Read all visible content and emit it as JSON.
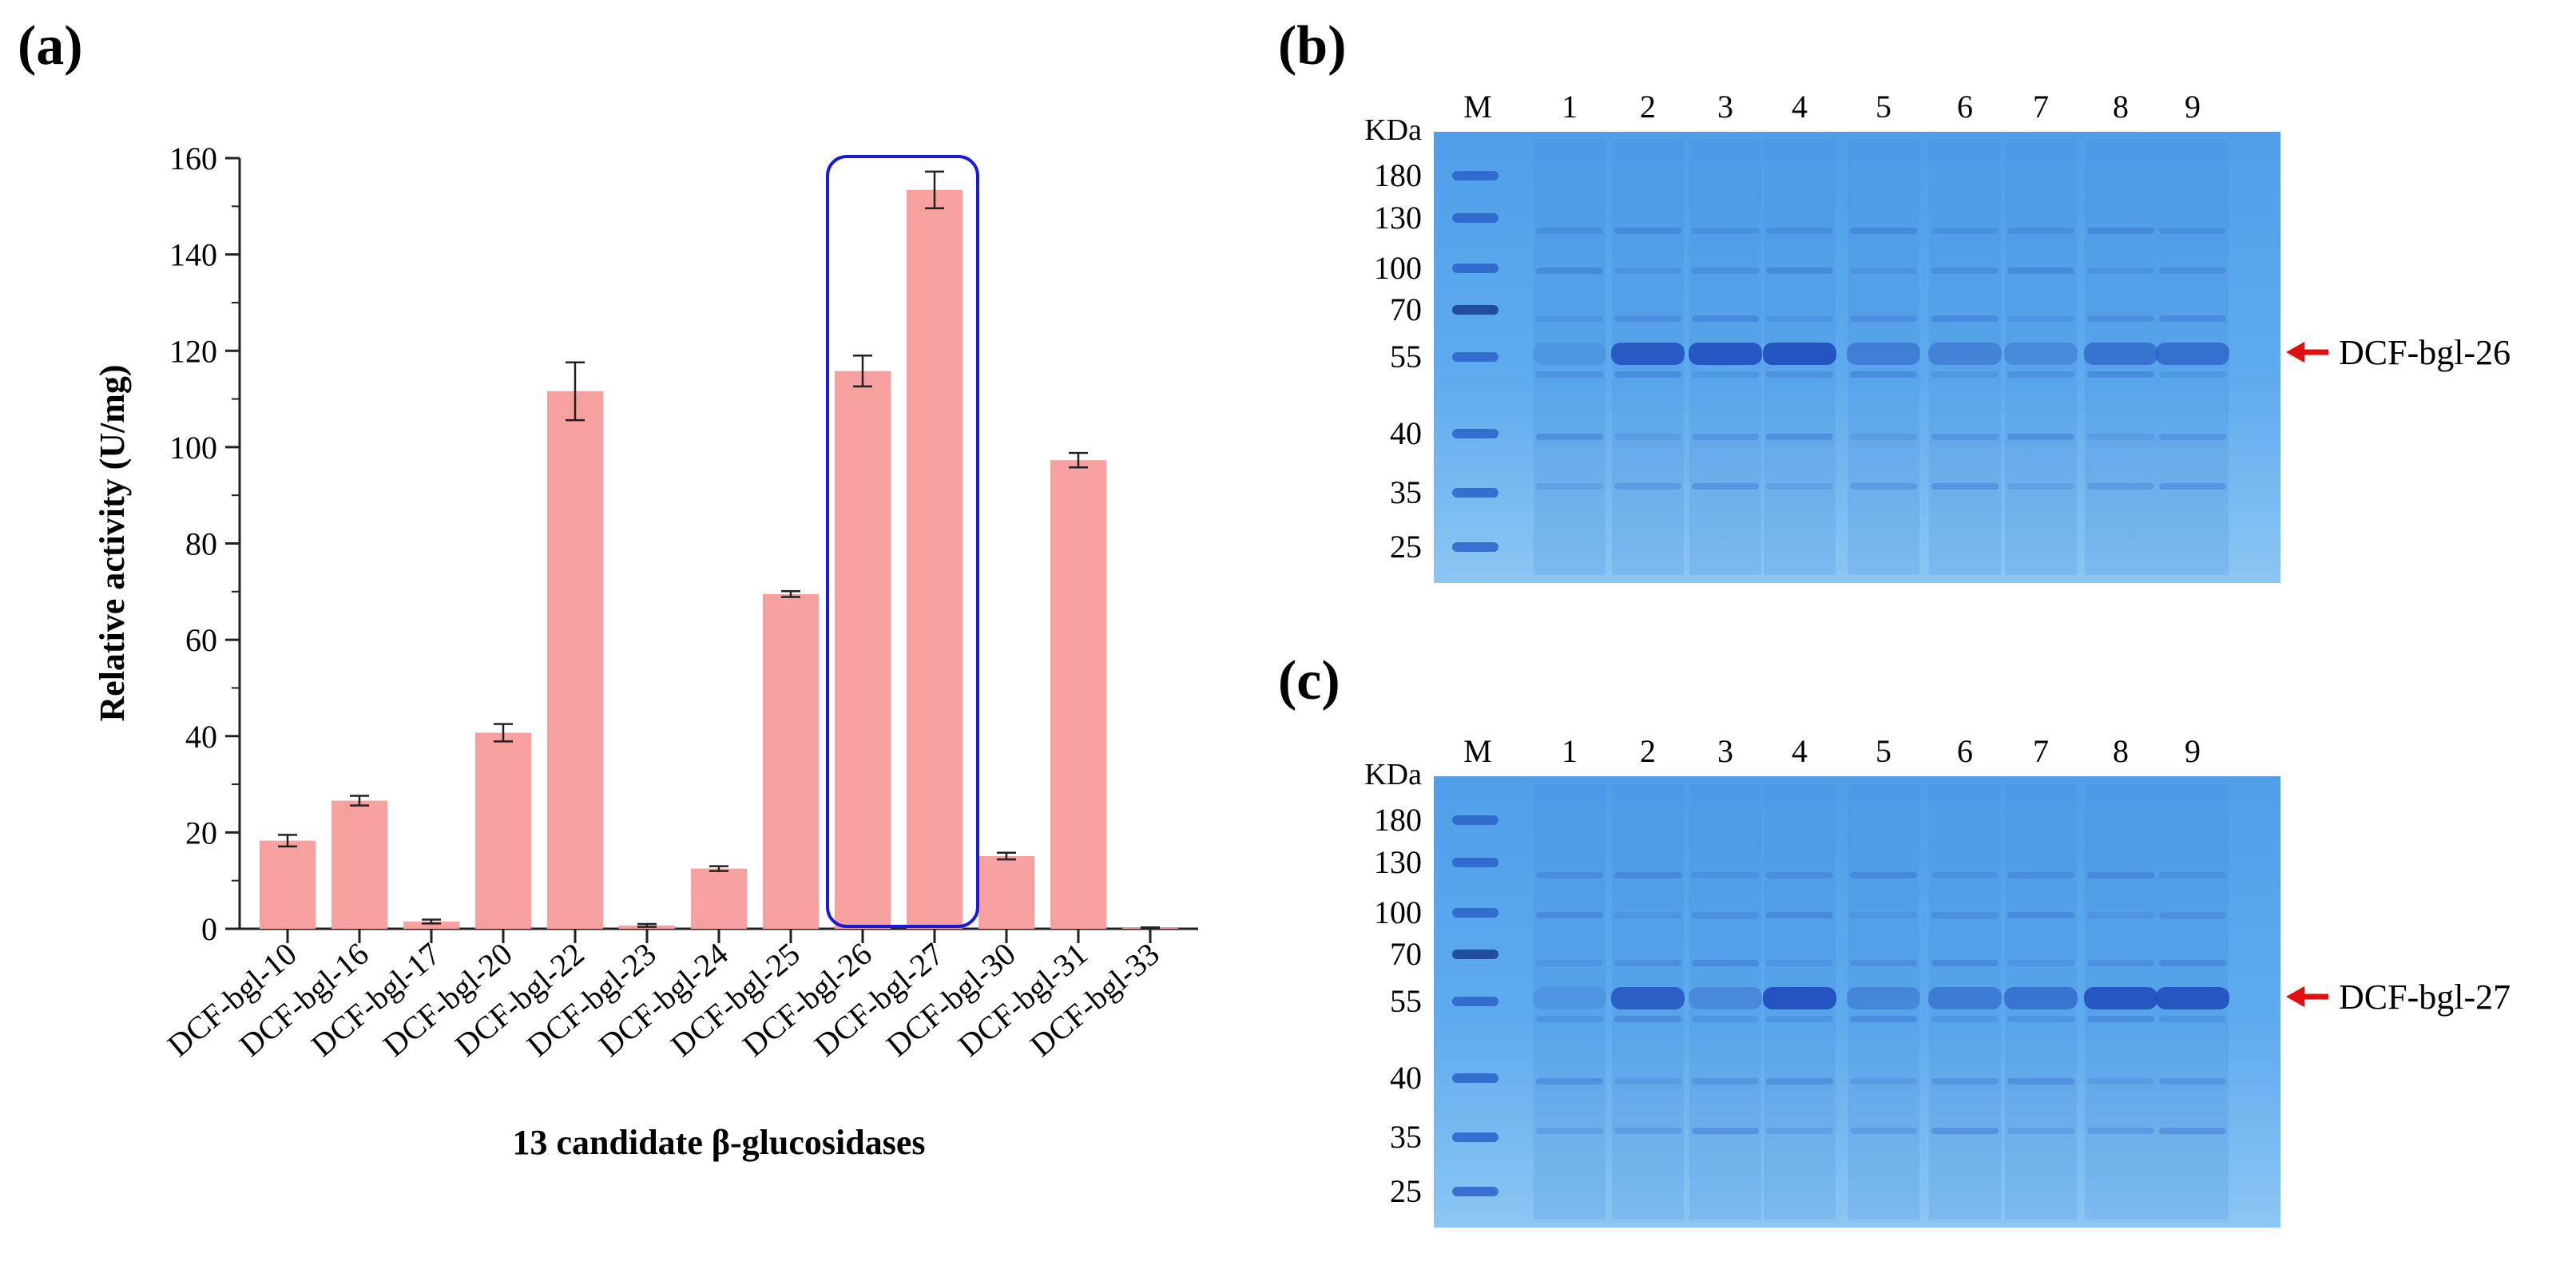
{
  "panel_labels": {
    "a": "(a)",
    "b": "(b)",
    "c": "(c)"
  },
  "chart_data": {
    "type": "bar",
    "title": "",
    "xlabel": "13 candidate β-glucosidases",
    "ylabel": "Relative activity (U/mg)",
    "ylim": [
      0,
      160
    ],
    "yticks": [
      0,
      20,
      40,
      60,
      80,
      100,
      120,
      140,
      160
    ],
    "categories": [
      "DCF-bgl-10",
      "DCF-bgl-16",
      "DCF-bgl-17",
      "DCF-bgl-20",
      "DCF-bgl-22",
      "DCF-bgl-23",
      "DCF-bgl-24",
      "DCF-bgl-25",
      "DCF-bgl-26",
      "DCF-bgl-27",
      "DCF-bgl-30",
      "DCF-bgl-31",
      "DCF-bgl-33"
    ],
    "values": [
      18.3,
      26.6,
      1.5,
      40.7,
      111.6,
      0.7,
      12.5,
      69.5,
      115.8,
      153.4,
      15.1,
      97.3,
      0.2
    ],
    "errors": [
      1.2,
      1.0,
      0.4,
      1.8,
      6.0,
      0.3,
      0.5,
      0.6,
      3.2,
      3.8,
      0.7,
      1.5,
      0.1
    ],
    "highlight": [
      "DCF-bgl-26",
      "DCF-bgl-27"
    ],
    "bar_color": "#f6a0a0",
    "highlight_color": "#1a1ad6"
  },
  "gels": [
    {
      "id": "b",
      "unit_label": "KDa",
      "lane_labels": [
        "M",
        "1",
        "2",
        "3",
        "4",
        "5",
        "6",
        "7",
        "8",
        "9"
      ],
      "markers": [
        "180",
        "130",
        "100",
        "70",
        "55",
        "40",
        "35",
        "25"
      ],
      "arrow_label": "DCF-bgl-26",
      "arrow_marker": "55"
    },
    {
      "id": "c",
      "unit_label": "KDa",
      "lane_labels": [
        "M",
        "1",
        "2",
        "3",
        "4",
        "5",
        "6",
        "7",
        "8",
        "9"
      ],
      "markers": [
        "180",
        "130",
        "100",
        "70",
        "55",
        "40",
        "35",
        "25"
      ],
      "arrow_label": "DCF-bgl-27",
      "arrow_marker": "55"
    }
  ],
  "colors": {
    "gel_background": "#5aa8ea",
    "gel_band": "#1f4fbf",
    "arrow": "#e01010"
  }
}
